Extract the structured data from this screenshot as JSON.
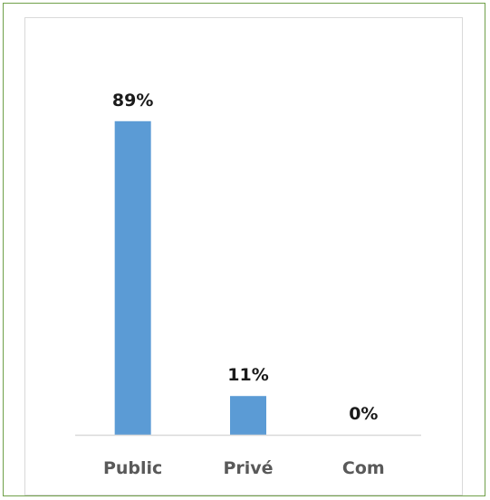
{
  "chart_data": {
    "type": "bar",
    "categories": [
      "Public",
      "Privé",
      "Com"
    ],
    "values": [
      89,
      11,
      0
    ],
    "data_labels": [
      "89%",
      "11%",
      "0%"
    ],
    "ylim": [
      0,
      100
    ],
    "grid": false,
    "legend": "none",
    "bar_color": "#5b9bd5",
    "axis_color": "#d9d9d9"
  }
}
